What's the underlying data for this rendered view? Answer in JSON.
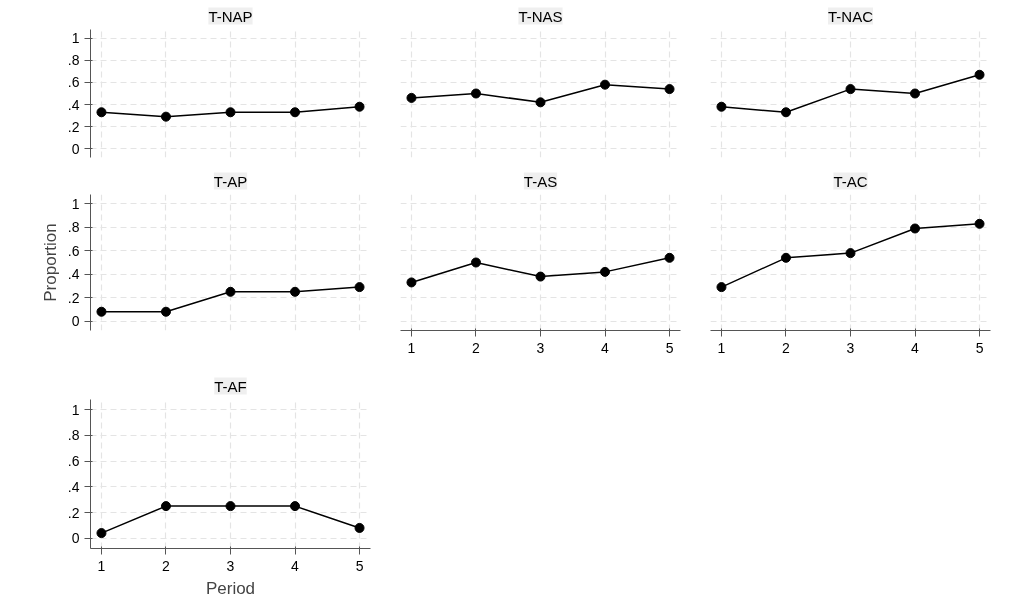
{
  "chart_data": [
    {
      "type": "line",
      "title": "T-NAP",
      "x": [
        1,
        2,
        3,
        4,
        5
      ],
      "xlim": [
        0.83,
        5.17
      ],
      "ylim": [
        -0.08,
        1.08
      ],
      "yticks": [
        {
          "value": 0,
          "label": "0"
        },
        {
          "value": 0.2,
          "label": ".2"
        },
        {
          "value": 0.4,
          "label": ".4"
        },
        {
          "value": 0.6,
          "label": ".6"
        },
        {
          "value": 0.8,
          "label": ".8"
        },
        {
          "value": 1,
          "label": "1"
        }
      ],
      "xticks": [
        1,
        2,
        3,
        4,
        5
      ],
      "grid": true,
      "marker": "circle",
      "tick_labels": "y",
      "series": [
        {
          "color": "#000000",
          "values": [
            0.33,
            0.29,
            0.33,
            0.33,
            0.38
          ]
        }
      ]
    },
    {
      "type": "line",
      "title": "T-NAS",
      "x": [
        1,
        2,
        3,
        4,
        5
      ],
      "xlim": [
        0.83,
        5.17
      ],
      "ylim": [
        -0.08,
        1.08
      ],
      "yticks": [
        0,
        0.2,
        0.4,
        0.6,
        0.8,
        1
      ],
      "xticks": [
        1,
        2,
        3,
        4,
        5
      ],
      "grid": true,
      "marker": "circle",
      "tick_labels": false,
      "series": [
        {
          "color": "#000000",
          "values": [
            0.46,
            0.5,
            0.42,
            0.58,
            0.54
          ]
        }
      ]
    },
    {
      "type": "line",
      "title": "T-NAC",
      "x": [
        1,
        2,
        3,
        4,
        5
      ],
      "xlim": [
        0.83,
        5.17
      ],
      "ylim": [
        -0.08,
        1.08
      ],
      "yticks": [
        0,
        0.2,
        0.4,
        0.6,
        0.8,
        1
      ],
      "xticks": [
        1,
        2,
        3,
        4,
        5
      ],
      "grid": true,
      "marker": "circle",
      "tick_labels": false,
      "series": [
        {
          "color": "#000000",
          "values": [
            0.38,
            0.33,
            0.54,
            0.5,
            0.67
          ]
        }
      ]
    },
    {
      "type": "line",
      "title": "T-AP",
      "ylabel": "Proportion",
      "x": [
        1,
        2,
        3,
        4,
        5
      ],
      "xlim": [
        0.83,
        5.17
      ],
      "ylim": [
        -0.08,
        1.08
      ],
      "yticks": [
        {
          "value": 0,
          "label": "0"
        },
        {
          "value": 0.2,
          "label": ".2"
        },
        {
          "value": 0.4,
          "label": ".4"
        },
        {
          "value": 0.6,
          "label": ".6"
        },
        {
          "value": 0.8,
          "label": ".8"
        },
        {
          "value": 1,
          "label": "1"
        }
      ],
      "xticks": [
        1,
        2,
        3,
        4,
        5
      ],
      "grid": true,
      "marker": "circle",
      "tick_labels": "y",
      "series": [
        {
          "color": "#000000",
          "values": [
            0.08,
            0.08,
            0.25,
            0.25,
            0.29
          ]
        }
      ]
    },
    {
      "type": "line",
      "title": "T-AS",
      "x": [
        1,
        2,
        3,
        4,
        5
      ],
      "xlim": [
        0.83,
        5.17
      ],
      "ylim": [
        -0.08,
        1.08
      ],
      "yticks": [
        0,
        0.2,
        0.4,
        0.6,
        0.8,
        1
      ],
      "xticks": [
        1,
        2,
        3,
        4,
        5
      ],
      "grid": true,
      "marker": "circle",
      "tick_labels": "x",
      "series": [
        {
          "color": "#000000",
          "values": [
            0.33,
            0.5,
            0.38,
            0.42,
            0.54
          ]
        }
      ]
    },
    {
      "type": "line",
      "title": "T-AC",
      "x": [
        1,
        2,
        3,
        4,
        5
      ],
      "xlim": [
        0.83,
        5.17
      ],
      "ylim": [
        -0.08,
        1.08
      ],
      "yticks": [
        0,
        0.2,
        0.4,
        0.6,
        0.8,
        1
      ],
      "xticks": [
        1,
        2,
        3,
        4,
        5
      ],
      "grid": true,
      "marker": "circle",
      "tick_labels": "x",
      "series": [
        {
          "color": "#000000",
          "values": [
            0.29,
            0.54,
            0.58,
            0.79,
            0.83
          ]
        }
      ]
    },
    {
      "type": "line",
      "title": "T-AF",
      "xlabel": "Period",
      "x": [
        1,
        2,
        3,
        4,
        5
      ],
      "xlim": [
        0.83,
        5.17
      ],
      "ylim": [
        -0.08,
        1.08
      ],
      "yticks": [
        {
          "value": 0,
          "label": "0"
        },
        {
          "value": 0.2,
          "label": ".2"
        },
        {
          "value": 0.4,
          "label": ".4"
        },
        {
          "value": 0.6,
          "label": ".6"
        },
        {
          "value": 0.8,
          "label": ".8"
        },
        {
          "value": 1,
          "label": "1"
        }
      ],
      "xticks": [
        1,
        2,
        3,
        4,
        5
      ],
      "grid": true,
      "marker": "circle",
      "series": [
        {
          "color": "#000000",
          "values": [
            0.04,
            0.25,
            0.25,
            0.25,
            0.08
          ]
        }
      ]
    }
  ]
}
